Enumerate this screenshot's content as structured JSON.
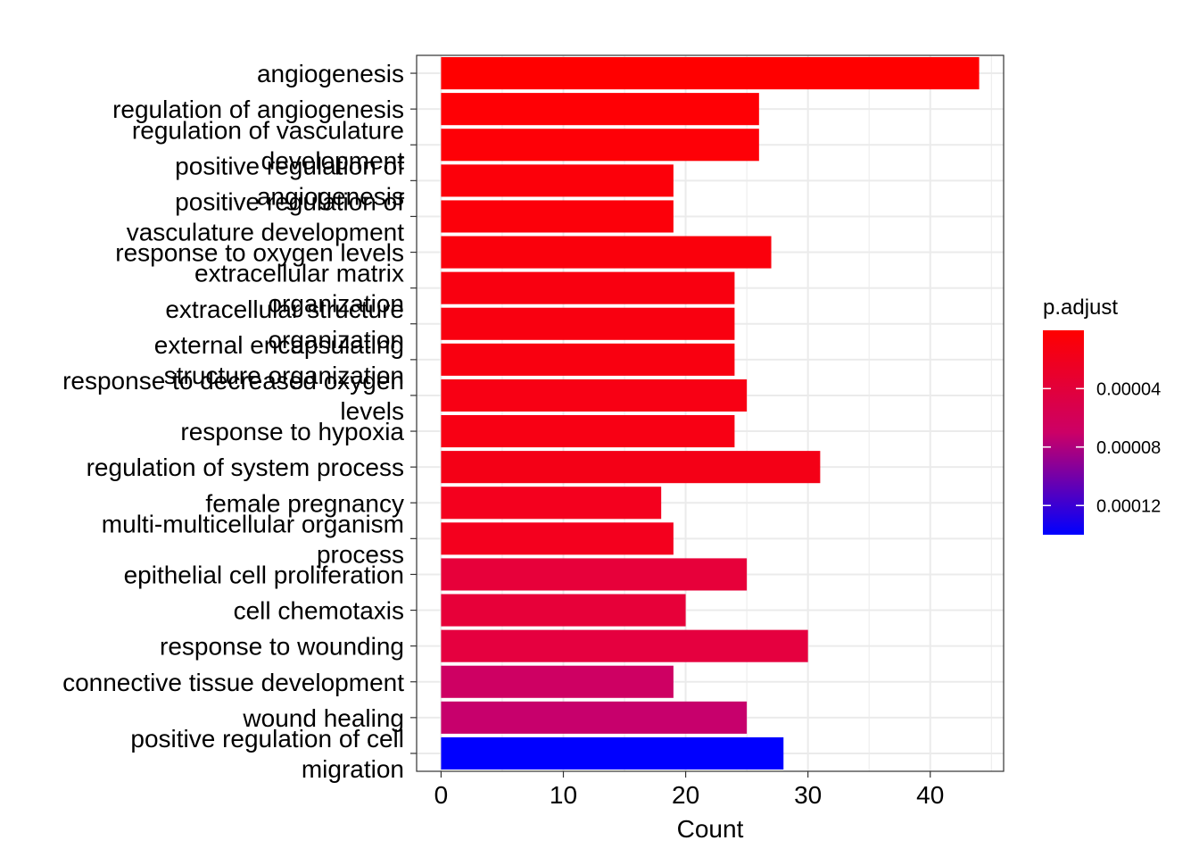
{
  "chart_data": {
    "type": "bar",
    "orientation": "horizontal",
    "categories": [
      [
        "angiogenesis"
      ],
      [
        "regulation of angiogenesis"
      ],
      [
        "regulation of vasculature",
        "development"
      ],
      [
        "positive regulation of",
        "angiogenesis"
      ],
      [
        "positive regulation of",
        "vasculature development"
      ],
      [
        "response to oxygen levels"
      ],
      [
        "extracellular matrix",
        "organization"
      ],
      [
        "extracellular structure",
        "organization"
      ],
      [
        "external encapsulating",
        "structure organization"
      ],
      [
        "response to decreased oxygen",
        "levels"
      ],
      [
        "response to hypoxia"
      ],
      [
        "regulation of system process"
      ],
      [
        "female pregnancy"
      ],
      [
        "multi-multicellular organism",
        "process"
      ],
      [
        "epithelial cell proliferation"
      ],
      [
        "cell chemotaxis"
      ],
      [
        "response to wounding"
      ],
      [
        "connective tissue development"
      ],
      [
        "wound healing"
      ],
      [
        "positive regulation of cell",
        "migration"
      ]
    ],
    "values": [
      44,
      26,
      26,
      19,
      19,
      27,
      24,
      24,
      24,
      25,
      24,
      31,
      18,
      19,
      25,
      20,
      30,
      19,
      25,
      28
    ],
    "bar_colors": [
      "#FF0000",
      "#FF0005",
      "#FE0007",
      "#FC000A",
      "#FC000A",
      "#FA000C",
      "#F90010",
      "#F90010",
      "#F90010",
      "#F80014",
      "#F80014",
      "#F40016",
      "#F4001E",
      "#F4001E",
      "#E7003A",
      "#E70039",
      "#E5003F",
      "#CE0063",
      "#C7006C",
      "#0000FF"
    ],
    "xlabel": "Count",
    "ylabel": "",
    "xlim": [
      -2,
      46
    ],
    "xticks": [
      0,
      10,
      20,
      30,
      40
    ],
    "grid": true,
    "legend": {
      "title": "p.adjust",
      "position": "right",
      "ticks": [
        "0.00004",
        "0.00008",
        "0.00012"
      ],
      "tick_values": [
        4e-05,
        8e-05,
        0.00012
      ],
      "range": [
        1e-07,
        0.00014
      ],
      "color_low": "#FF0000",
      "color_high": "#0000FF"
    }
  }
}
